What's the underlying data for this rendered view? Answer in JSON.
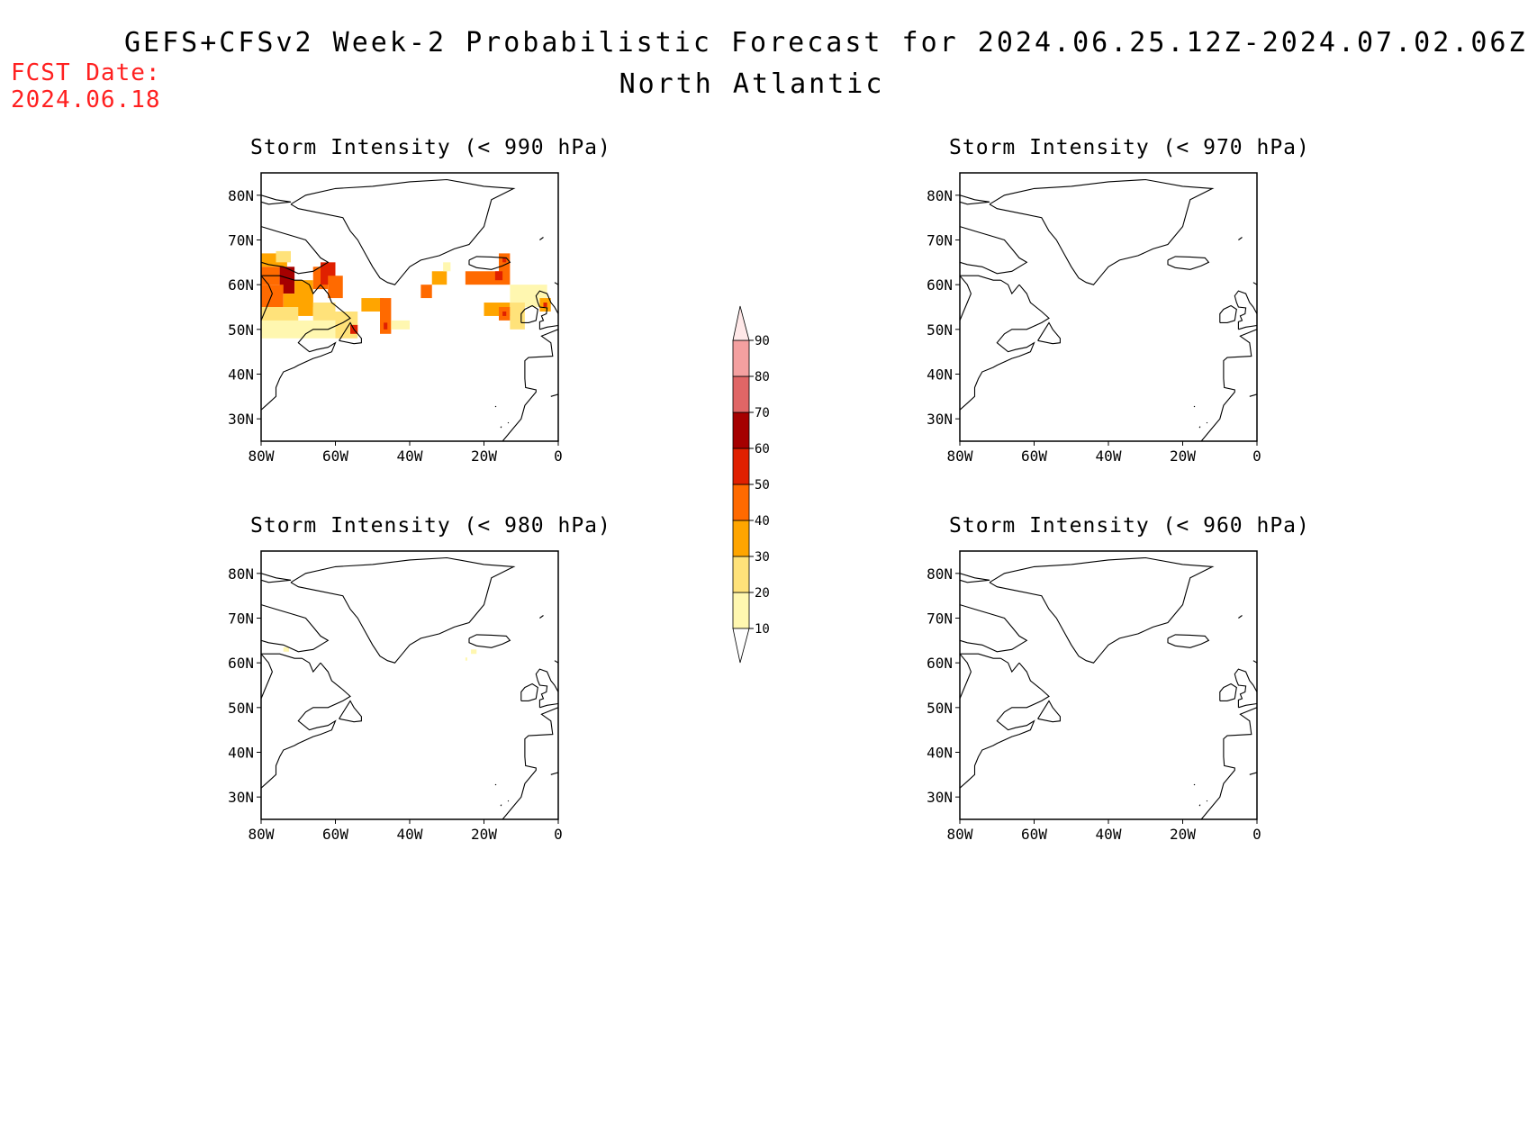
{
  "header": {
    "title": "GEFS+CFSv2 Week-2 Probabilistic Forecast for 2024.06.25.12Z-2024.07.02.06Z",
    "region": "North Atlantic",
    "fcst_label": "FCST Date:",
    "fcst_date": "2024.06.18"
  },
  "colors": {
    "fcst_text": "#ff2020",
    "coastline": "#000000"
  },
  "colorbar": {
    "levels": [
      "10",
      "20",
      "30",
      "40",
      "50",
      "60",
      "70",
      "80",
      "90"
    ],
    "bins": [
      {
        "range": "<10",
        "color": "#ffffff"
      },
      {
        "range": "10-20",
        "color": "#fff7b0"
      },
      {
        "range": "20-30",
        "color": "#ffe27a"
      },
      {
        "range": "30-40",
        "color": "#ffa500"
      },
      {
        "range": "40-50",
        "color": "#ff6a00"
      },
      {
        "range": "50-60",
        "color": "#e02000"
      },
      {
        "range": "60-70",
        "color": "#a50000"
      },
      {
        "range": "70-80",
        "color": "#e06666"
      },
      {
        "range": "80-90",
        "color": "#f4a0a0"
      },
      {
        "range": ">90",
        "color": "#ffe8e8"
      }
    ]
  },
  "axes": {
    "lat_labels": [
      "30N",
      "40N",
      "50N",
      "60N",
      "70N",
      "80N"
    ],
    "lon_labels": [
      "80W",
      "60W",
      "40W",
      "20W",
      "0"
    ],
    "lat_range": [
      25,
      85
    ],
    "lon_range": [
      -80,
      0
    ]
  },
  "panels": [
    {
      "id": "p990",
      "title": "Storm Intensity (< 990 hPa)",
      "threshold_hpa": 990
    },
    {
      "id": "p970",
      "title": "Storm Intensity (< 970 hPa)",
      "threshold_hpa": 970
    },
    {
      "id": "p980",
      "title": "Storm Intensity (< 980 hPa)",
      "threshold_hpa": 980
    },
    {
      "id": "p960",
      "title": "Storm Intensity (< 960 hPa)",
      "threshold_hpa": 960
    }
  ],
  "probability_fields": {
    "p990": [
      {
        "lon": [
          -80,
          -73
        ],
        "lat": [
          64,
          67
        ],
        "value": 30
      },
      {
        "lon": [
          -76,
          -72
        ],
        "lat": [
          65,
          67.5
        ],
        "value": 20
      },
      {
        "lon": [
          -80,
          -75
        ],
        "lat": [
          60,
          64
        ],
        "value": 40
      },
      {
        "lon": [
          -75,
          -71
        ],
        "lat": [
          58,
          64
        ],
        "value": 60
      },
      {
        "lon": [
          -71,
          -66
        ],
        "lat": [
          55,
          61
        ],
        "value": 30
      },
      {
        "lon": [
          -66,
          -62
        ],
        "lat": [
          59,
          64
        ],
        "value": 40
      },
      {
        "lon": [
          -64,
          -60
        ],
        "lat": [
          60,
          65
        ],
        "value": 50
      },
      {
        "lon": [
          -62,
          -58
        ],
        "lat": [
          57,
          62
        ],
        "value": 40
      },
      {
        "lon": [
          -80,
          -74
        ],
        "lat": [
          55,
          60
        ],
        "value": 40
      },
      {
        "lon": [
          -74,
          -66
        ],
        "lat": [
          53,
          58
        ],
        "value": 30
      },
      {
        "lon": [
          -80,
          -70
        ],
        "lat": [
          51,
          55
        ],
        "value": 20
      },
      {
        "lon": [
          -80,
          -60
        ],
        "lat": [
          48,
          52
        ],
        "value": 10
      },
      {
        "lon": [
          -66,
          -60
        ],
        "lat": [
          52,
          56
        ],
        "value": 20
      },
      {
        "lon": [
          -60,
          -54
        ],
        "lat": [
          48,
          54
        ],
        "value": 20
      },
      {
        "lon": [
          -56,
          -54
        ],
        "lat": [
          49,
          51
        ],
        "value": 50
      },
      {
        "lon": [
          -53,
          -47
        ],
        "lat": [
          54,
          57
        ],
        "value": 30
      },
      {
        "lon": [
          -48,
          -45
        ],
        "lat": [
          49,
          57
        ],
        "value": 40
      },
      {
        "lon": [
          -47,
          -46
        ],
        "lat": [
          50,
          51.5
        ],
        "value": 50
      },
      {
        "lon": [
          -45,
          -40
        ],
        "lat": [
          50,
          52
        ],
        "value": 10
      },
      {
        "lon": [
          -37,
          -34
        ],
        "lat": [
          57,
          60
        ],
        "value": 40
      },
      {
        "lon": [
          -34,
          -30
        ],
        "lat": [
          60,
          63
        ],
        "value": 30
      },
      {
        "lon": [
          -31,
          -29
        ],
        "lat": [
          63,
          65
        ],
        "value": 10
      },
      {
        "lon": [
          -25,
          -16
        ],
        "lat": [
          60,
          63
        ],
        "value": 40
      },
      {
        "lon": [
          -16,
          -13
        ],
        "lat": [
          60,
          67
        ],
        "value": 40
      },
      {
        "lon": [
          -15,
          -14
        ],
        "lat": [
          65,
          66
        ],
        "value": 50
      },
      {
        "lon": [
          -17,
          -15
        ],
        "lat": [
          61,
          63
        ],
        "value": 50
      },
      {
        "lon": [
          -20,
          -13
        ],
        "lat": [
          53,
          56
        ],
        "value": 30
      },
      {
        "lon": [
          -16,
          -13
        ],
        "lat": [
          52,
          55
        ],
        "value": 40
      },
      {
        "lon": [
          -15,
          -14
        ],
        "lat": [
          53,
          54
        ],
        "value": 50
      },
      {
        "lon": [
          -13,
          -3
        ],
        "lat": [
          55,
          60
        ],
        "value": 10
      },
      {
        "lon": [
          -13,
          -9
        ],
        "lat": [
          50,
          56
        ],
        "value": 20
      },
      {
        "lon": [
          -5,
          -2
        ],
        "lat": [
          54,
          57
        ],
        "value": 30
      },
      {
        "lon": [
          -4,
          -3
        ],
        "lat": [
          55,
          56
        ],
        "value": 50
      }
    ],
    "p970": [],
    "p980": [
      {
        "lon": [
          -74,
          -72.5
        ],
        "lat": [
          62.5,
          63.5
        ],
        "value": 10
      },
      {
        "lon": [
          -23.5,
          -22
        ],
        "lat": [
          62,
          63
        ],
        "value": 10
      },
      {
        "lon": [
          -25,
          -24.5
        ],
        "lat": [
          60.5,
          61.2
        ],
        "value": 10
      }
    ],
    "p960": []
  }
}
